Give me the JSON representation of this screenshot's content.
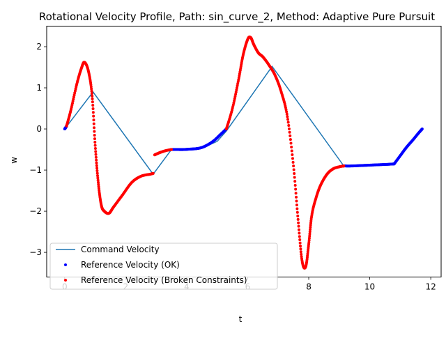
{
  "chart_data": {
    "type": "line",
    "title": "Rotational Velocity Profile, Path: sin_curve_2, Method: Adaptive Pure Pursuit",
    "xlabel": "t",
    "ylabel": "w",
    "xlim": [
      -0.59,
      12.34
    ],
    "ylim": [
      -3.6,
      2.5
    ],
    "xticks": [
      0,
      2,
      4,
      6,
      8,
      10,
      12
    ],
    "yticks": [
      -3,
      -2,
      -1,
      0,
      1,
      2
    ],
    "xtick_labels": [
      "0",
      "2",
      "4",
      "6",
      "8",
      "10",
      "12"
    ],
    "ytick_labels": [
      "−3",
      "−2",
      "−1",
      "0",
      "1",
      "2"
    ],
    "grid": false,
    "legend_position": "lower-left",
    "series": [
      {
        "name": "Command Velocity",
        "kind": "line",
        "color": "#1f77b4",
        "x": [
          0,
          0.93,
          2.9,
          3.5,
          4.5,
          5.0,
          5.3,
          6.8,
          9.15,
          10.0,
          10.8,
          11.72
        ],
        "y": [
          0,
          0.9,
          -1.1,
          -0.5,
          -0.47,
          -0.3,
          -0.05,
          1.52,
          -0.9,
          -0.88,
          -0.86,
          0
        ]
      },
      {
        "name": "Reference Velocity (OK)",
        "kind": "scatter",
        "color": "#0000ff",
        "segments": [
          {
            "x": [
              0.0,
              0.03,
              0.06
            ],
            "y": [
              0.0,
              0.03,
              0.07
            ]
          },
          {
            "x": [
              3.5,
              3.7,
              3.9,
              4.1,
              4.3,
              4.5,
              4.7,
              4.9,
              5.1,
              5.3
            ],
            "y": [
              -0.5,
              -0.5,
              -0.5,
              -0.49,
              -0.48,
              -0.45,
              -0.38,
              -0.28,
              -0.14,
              0.0
            ]
          },
          {
            "x": [
              9.15,
              9.4,
              9.7,
              10.0,
              10.3,
              10.6,
              10.8
            ],
            "y": [
              -0.9,
              -0.9,
              -0.89,
              -0.88,
              -0.87,
              -0.86,
              -0.85
            ]
          },
          {
            "x": [
              10.8,
              11.0,
              11.2,
              11.4,
              11.6,
              11.72
            ],
            "y": [
              -0.85,
              -0.65,
              -0.45,
              -0.28,
              -0.1,
              0.0
            ]
          }
        ]
      },
      {
        "name": "Reference Velocity (Broken Constraints)",
        "kind": "scatter",
        "color": "#ff0000",
        "segments": [
          {
            "x": [
              0.06,
              0.2,
              0.4,
              0.55,
              0.65,
              0.78,
              0.9,
              1.0,
              1.1,
              1.2,
              1.3,
              1.45,
              1.6,
              1.9,
              2.2,
              2.5,
              2.8,
              2.9
            ],
            "y": [
              0.07,
              0.45,
              1.1,
              1.48,
              1.62,
              1.4,
              0.8,
              -0.4,
              -1.3,
              -1.85,
              -2.0,
              -2.05,
              -1.9,
              -1.6,
              -1.3,
              -1.15,
              -1.1,
              -1.08
            ]
          },
          {
            "x": [
              2.95,
              3.1,
              3.3,
              3.5
            ],
            "y": [
              -0.63,
              -0.58,
              -0.53,
              -0.5
            ]
          },
          {
            "x": [
              5.3,
              5.5,
              5.7,
              5.85,
              6.0,
              6.1,
              6.2,
              6.35,
              6.5,
              6.7,
              6.9,
              7.1,
              7.3,
              7.5,
              7.65,
              7.78,
              7.9,
              8.0,
              8.1,
              8.25,
              8.4,
              8.6,
              8.8,
              9.0,
              9.15
            ],
            "y": [
              0.0,
              0.5,
              1.2,
              1.8,
              2.18,
              2.22,
              2.05,
              1.85,
              1.75,
              1.55,
              1.3,
              0.9,
              0.3,
              -0.9,
              -2.2,
              -3.2,
              -3.35,
              -2.8,
              -2.1,
              -1.65,
              -1.35,
              -1.1,
              -0.97,
              -0.92,
              -0.9
            ]
          }
        ]
      }
    ]
  }
}
